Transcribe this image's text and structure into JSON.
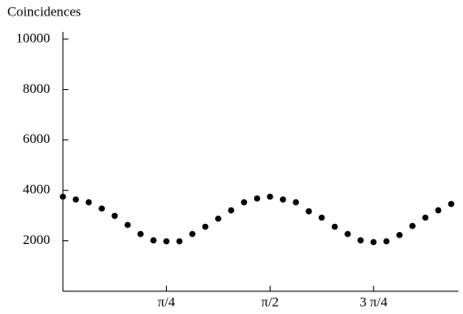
{
  "chart_data": {
    "type": "scatter",
    "y_label": "Coincidences",
    "x": [
      0,
      0.098,
      0.196,
      0.295,
      0.393,
      0.491,
      0.589,
      0.687,
      0.785,
      0.884,
      0.982,
      1.08,
      1.178,
      1.276,
      1.374,
      1.473,
      1.571,
      1.669,
      1.767,
      1.865,
      1.963,
      2.062,
      2.16,
      2.258,
      2.356,
      2.454,
      2.553,
      2.651,
      2.749,
      2.847,
      2.945
    ],
    "values": [
      3750,
      3640,
      3530,
      3280,
      2990,
      2630,
      2270,
      2020,
      1980,
      1980,
      2270,
      2560,
      2880,
      3210,
      3530,
      3680,
      3750,
      3640,
      3530,
      3170,
      2920,
      2560,
      2270,
      2020,
      1950,
      1980,
      2230,
      2590,
      2920,
      3210,
      3460
    ],
    "color": "#000000",
    "xlim": [
      0,
      3.0
    ],
    "ylim": [
      0,
      10000
    ],
    "xticks": [
      {
        "value": 0.785,
        "label": "π/4"
      },
      {
        "value": 1.571,
        "label": "π/2"
      },
      {
        "value": 2.356,
        "label": "3 π/4"
      }
    ],
    "yticks": [
      2000,
      4000,
      6000,
      8000,
      10000
    ]
  }
}
